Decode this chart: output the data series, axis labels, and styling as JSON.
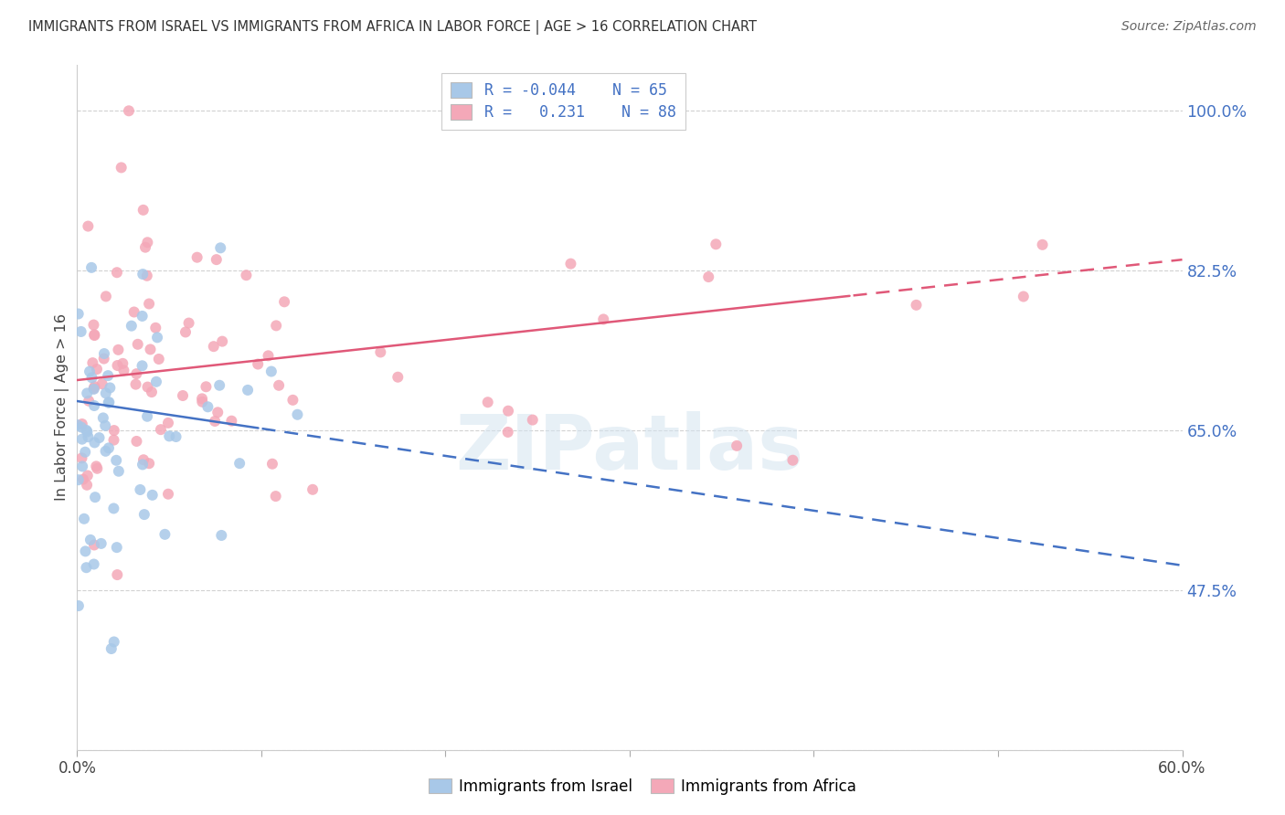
{
  "title": "IMMIGRANTS FROM ISRAEL VS IMMIGRANTS FROM AFRICA IN LABOR FORCE | AGE > 16 CORRELATION CHART",
  "source": "Source: ZipAtlas.com",
  "ylabel": "In Labor Force | Age > 16",
  "xlim": [
    0.0,
    0.6
  ],
  "ylim": [
    0.3,
    1.05
  ],
  "yticks": [
    0.475,
    0.65,
    0.825,
    1.0
  ],
  "ytick_labels": [
    "47.5%",
    "65.0%",
    "82.5%",
    "100.0%"
  ],
  "xticks": [
    0.0,
    0.1,
    0.2,
    0.3,
    0.4,
    0.5,
    0.6
  ],
  "xtick_labels": [
    "0.0%",
    "",
    "",
    "",
    "",
    "",
    "60.0%"
  ],
  "israel_R": -0.044,
  "israel_N": 65,
  "africa_R": 0.231,
  "africa_N": 88,
  "israel_color": "#a8c8e8",
  "africa_color": "#f4a8b8",
  "israel_line_color": "#4472c4",
  "africa_line_color": "#e05878",
  "background_color": "#ffffff",
  "watermark_text": "ZIPatlas",
  "legend_R1": "R = -0.044",
  "legend_N1": "N = 65",
  "legend_R2": "R =  0.231",
  "legend_N2": "N = 88"
}
